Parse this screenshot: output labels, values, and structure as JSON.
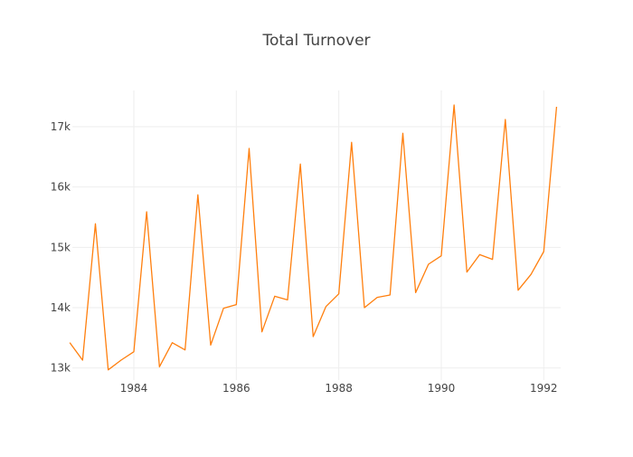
{
  "chart_data": {
    "type": "line",
    "title": "Total Turnover",
    "xlabel": "",
    "ylabel": "",
    "grid": true,
    "legend": "none",
    "line_color": "#ff7f0e",
    "xlim": [
      1982.8,
      1992.33
    ],
    "ylim": [
      12800,
      17600
    ],
    "x_ticks": [
      1984,
      1986,
      1988,
      1990,
      1992
    ],
    "x_tick_labels": [
      "1984",
      "1986",
      "1988",
      "1990",
      "1992"
    ],
    "y_ticks": [
      13000,
      14000,
      15000,
      16000,
      17000
    ],
    "y_tick_labels": [
      "13k",
      "14k",
      "15k",
      "16k",
      "17k"
    ],
    "series": [
      {
        "x": [
          1982.75,
          1983.0,
          1983.25,
          1983.5,
          1983.75,
          1984.0,
          1984.25,
          1984.5,
          1984.75,
          1985.0,
          1985.25,
          1985.5,
          1985.75,
          1986.0,
          1986.25,
          1986.5,
          1986.75,
          1987.0,
          1987.25,
          1987.5,
          1987.75,
          1988.0,
          1988.25,
          1988.5,
          1988.75,
          1989.0,
          1989.25,
          1989.5,
          1989.75,
          1990.0,
          1990.25,
          1990.5,
          1990.75,
          1991.0,
          1991.25,
          1991.5,
          1991.75,
          1992.0,
          1992.25
        ],
        "y": [
          13420,
          13130,
          15390,
          12970,
          13130,
          13270,
          15590,
          13020,
          13420,
          13300,
          15870,
          13380,
          13990,
          14050,
          16640,
          13600,
          14190,
          14130,
          16380,
          13520,
          14020,
          14230,
          16740,
          14000,
          14170,
          14210,
          16890,
          14250,
          14720,
          14860,
          17360,
          14590,
          14880,
          14800,
          17120,
          14290,
          14550,
          14930,
          17330
        ]
      }
    ]
  }
}
